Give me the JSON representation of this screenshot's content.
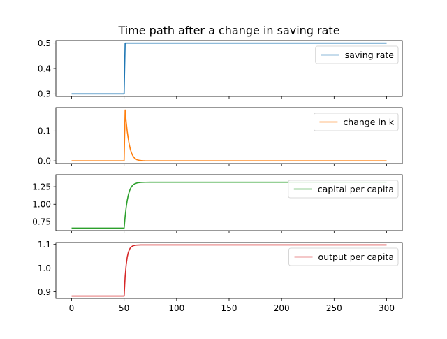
{
  "chart_data": {
    "type": "line",
    "title": "Time path after a change in saving rate",
    "x_range": [
      0,
      300
    ],
    "x_ticks": [
      0,
      50,
      100,
      150,
      200,
      250,
      300
    ],
    "grid": false,
    "legend_placement": "top-right",
    "subplots": [
      {
        "name": "saving rate",
        "color": "#1f77b4",
        "ylim": [
          0.29,
          0.51
        ],
        "y_ticks": [
          0.3,
          0.4,
          0.5
        ],
        "y_tick_labels": [
          "0.3",
          "0.4",
          "0.5"
        ],
        "series": {
          "t": [
            0,
            50,
            51,
            300
          ],
          "values": [
            0.3,
            0.3,
            0.5,
            0.5
          ]
        }
      },
      {
        "name": "change in k",
        "color": "#ff7f0e",
        "ylim": [
          -0.009,
          0.178
        ],
        "y_ticks": [
          0.0,
          0.1
        ],
        "y_tick_labels": [
          "0.0",
          "0.1"
        ],
        "series": {
          "t": [
            0,
            50,
            51,
            52,
            53,
            54,
            55,
            56,
            57,
            58,
            59,
            60,
            62,
            64,
            66,
            68,
            70,
            75,
            80,
            300
          ],
          "values": [
            0,
            0,
            0.17,
            0.13,
            0.098,
            0.073,
            0.053,
            0.038,
            0.027,
            0.019,
            0.013,
            0.009,
            0.004,
            0.002,
            0.001,
            0.0005,
            0.0002,
            0.0,
            0.0,
            0.0
          ]
        }
      },
      {
        "name": "capital per capita",
        "color": "#2ca02c",
        "ylim": [
          0.625,
          1.42
        ],
        "y_ticks": [
          0.75,
          1.0,
          1.25
        ],
        "y_tick_labels": [
          "0.75",
          "1.00",
          "1.25"
        ],
        "series": {
          "t": [
            0,
            50,
            51,
            52,
            53,
            54,
            55,
            56,
            57,
            58,
            59,
            60,
            62,
            64,
            66,
            68,
            70,
            75,
            80,
            300
          ],
          "values": [
            0.66,
            0.66,
            0.83,
            0.96,
            1.058,
            1.131,
            1.184,
            1.222,
            1.249,
            1.268,
            1.281,
            1.29,
            1.302,
            1.308,
            1.311,
            1.3125,
            1.3133,
            1.3135,
            1.3135,
            1.3135
          ]
        }
      },
      {
        "name": "output per capita",
        "color": "#d62728",
        "ylim": [
          0.872,
          1.108
        ],
        "y_ticks": [
          0.9,
          1.0,
          1.1
        ],
        "y_tick_labels": [
          "0.9",
          "1.0",
          "1.1"
        ],
        "series": {
          "t": [
            0,
            50,
            51,
            52,
            53,
            54,
            55,
            56,
            57,
            58,
            59,
            60,
            62,
            64,
            66,
            68,
            70,
            75,
            80,
            300
          ],
          "values": [
            0.882,
            0.882,
            0.965,
            1.015,
            1.047,
            1.066,
            1.078,
            1.086,
            1.09,
            1.093,
            1.095,
            1.096,
            1.097,
            1.0975,
            1.098,
            1.098,
            1.098,
            1.098,
            1.098,
            1.098
          ]
        }
      }
    ]
  }
}
